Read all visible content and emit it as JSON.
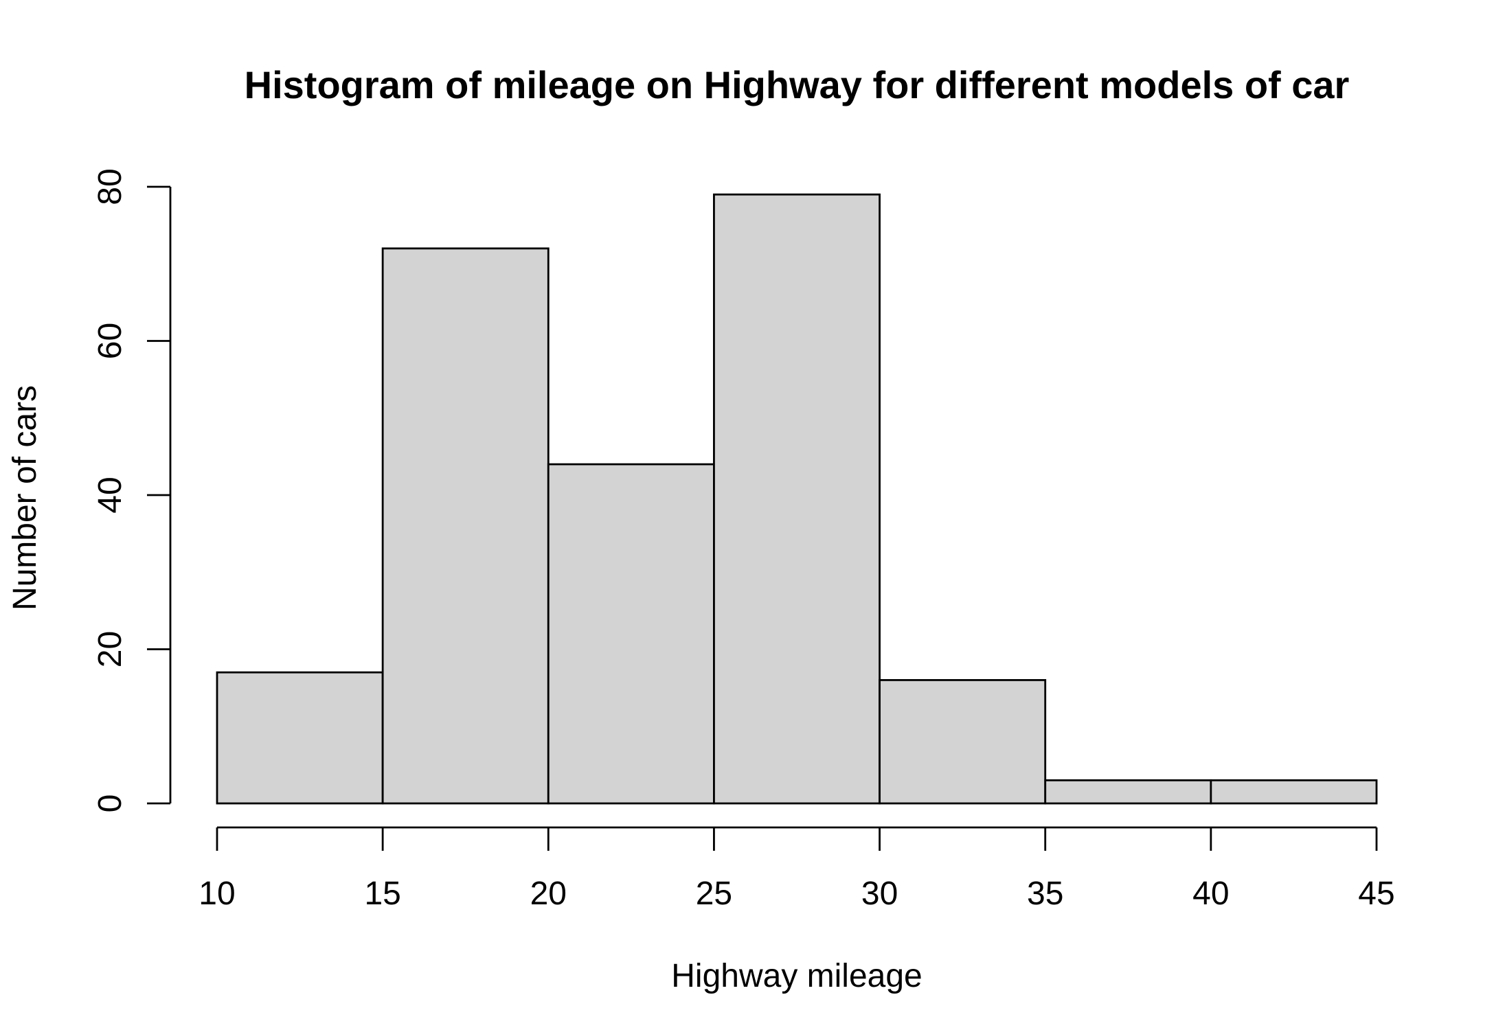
{
  "chart_data": {
    "type": "bar",
    "subtype": "histogram",
    "title": "Histogram of mileage on Highway for different models of car",
    "xlabel": "Highway mileage",
    "ylabel": "Number of cars",
    "bins": [
      {
        "from": 10,
        "to": 15,
        "count": 17
      },
      {
        "from": 15,
        "to": 20,
        "count": 72
      },
      {
        "from": 20,
        "to": 25,
        "count": 44
      },
      {
        "from": 25,
        "to": 30,
        "count": 79
      },
      {
        "from": 30,
        "to": 35,
        "count": 16
      },
      {
        "from": 35,
        "to": 40,
        "count": 3
      },
      {
        "from": 40,
        "to": 45,
        "count": 3
      }
    ],
    "xlim": [
      10,
      45
    ],
    "ylim": [
      0,
      80
    ],
    "x_ticks": [
      10,
      15,
      20,
      25,
      30,
      35,
      40,
      45
    ],
    "x_tick_labels": [
      "10",
      "15",
      "20",
      "25",
      "30",
      "35",
      "40",
      "45"
    ],
    "y_ticks": [
      0,
      20,
      40,
      60,
      80
    ],
    "y_tick_labels": [
      "0",
      "20",
      "40",
      "60",
      "80"
    ],
    "grid": false,
    "legend": "none",
    "colors": {
      "bar_fill": "#d3d3d3",
      "bar_stroke": "#000000",
      "background": "#ffffff"
    }
  }
}
